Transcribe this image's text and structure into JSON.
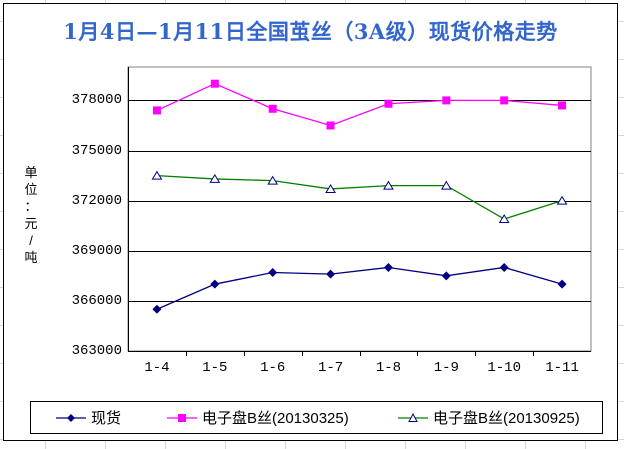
{
  "chart": {
    "title": "1月4日—1月11日全国茧丝（3A级）现货价格走势",
    "title_color": "#3366cc",
    "y_unit_label": "单位：元/吨",
    "y_unit_chars": [
      "单",
      "位",
      "：",
      "元",
      "/",
      "吨"
    ]
  },
  "chart_data": {
    "type": "line",
    "title": "1月4日—1月11日全国茧丝（3A级）现货价格走势",
    "categories": [
      "1-4",
      "1-5",
      "1-6",
      "1-7",
      "1-8",
      "1-9",
      "1-10",
      "1-11"
    ],
    "series": [
      {
        "name": "现货",
        "color": "#000080",
        "marker": "diamond",
        "values": [
          365500,
          367000,
          367700,
          367600,
          368000,
          367500,
          368000,
          367000
        ]
      },
      {
        "name": "电子盘B丝(20130325)",
        "color": "#ff00ff",
        "marker": "square",
        "values": [
          377400,
          379000,
          377500,
          376500,
          377800,
          378000,
          378000,
          377700
        ]
      },
      {
        "name": "电子盘B丝(20130925)",
        "color": "#008000",
        "marker": "triangle-open",
        "marker_stroke": "#000080",
        "values": [
          373500,
          373300,
          373200,
          372700,
          372900,
          372900,
          370900,
          372000
        ]
      }
    ],
    "ylabel": "单位：元/吨",
    "ylim": [
      363000,
      380000
    ],
    "yticks": [
      363000,
      366000,
      369000,
      372000,
      375000,
      378000
    ],
    "ytick_step": 3000,
    "grid": true,
    "legend_position": "bottom",
    "axis_color": "#000000",
    "plot_border_color": "#808080",
    "gridline_color": "#000000"
  }
}
